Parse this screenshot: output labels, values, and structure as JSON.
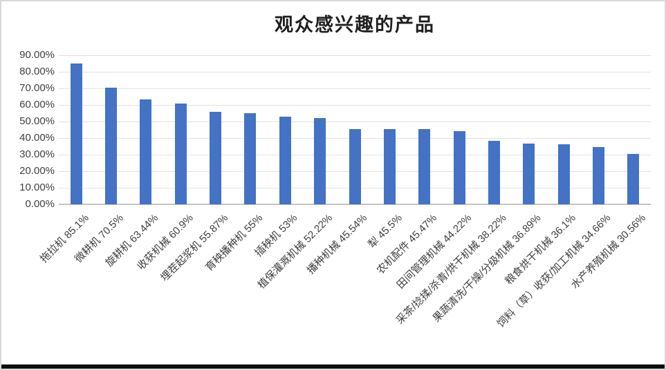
{
  "window": {
    "background": "#ffffff",
    "border_color": "#d9d9d9",
    "bottom_bar_color": "#0d0d0d"
  },
  "chart_data": {
    "type": "bar",
    "title": "观众感兴趣的产品",
    "categories": [
      "拖拉机",
      "微耕机",
      "旋耕机",
      "收获机械",
      "埋茬起浆机",
      "育秧播种机",
      "插秧机",
      "植保灌溉机械",
      "播种机械",
      "犁",
      "农机配件",
      "田间管理机械",
      "采茶/捻揉/杀青/烘干机械",
      "果蔬清洗/干燥/分级机械",
      "粮食烘干机械",
      "饲料（草）收获/加工机械",
      "水产养殖机械"
    ],
    "values": [
      85.1,
      70.5,
      63.44,
      60.9,
      55.87,
      55,
      53,
      52.22,
      45.54,
      45.5,
      45.47,
      44.22,
      38.22,
      36.89,
      36.1,
      34.66,
      30.56
    ],
    "x_tick_labels": [
      "拖拉机 85.1%",
      "微耕机 70.5%",
      "旋耕机 63.44%",
      "收获机械 60.9%",
      "埋茬起浆机 55.87%",
      "育秧播种机 55%",
      "插秧机 53%",
      "植保灌溉机械 52.22%",
      "播种机械 45.54%",
      "犁 45.5%",
      "农机配件 45.47%",
      "田间管理机械 44.22%",
      "采茶/捻揉/杀青/烘干机械 38.22%",
      "果蔬清洗/干燥/分级机械 36.89%",
      "粮食烘干机械 36.1%",
      "饲料（草）收获/加工机械 34.66%",
      "水产养殖机械 30.56%"
    ],
    "y_tick_labels": [
      "0.00%",
      "10.00%",
      "20.00%",
      "30.00%",
      "40.00%",
      "50.00%",
      "60.00%",
      "70.00%",
      "80.00%",
      "90.00%"
    ],
    "ylim": [
      0,
      90
    ],
    "ytick_step": 10,
    "grid": true,
    "legend": "none",
    "bar_color": "#4472C4",
    "gridline_color": "#E2E2E2",
    "axis_line_color": "#C3C3C3",
    "label_color": "#404040",
    "title_color": "#1f1f1f"
  }
}
